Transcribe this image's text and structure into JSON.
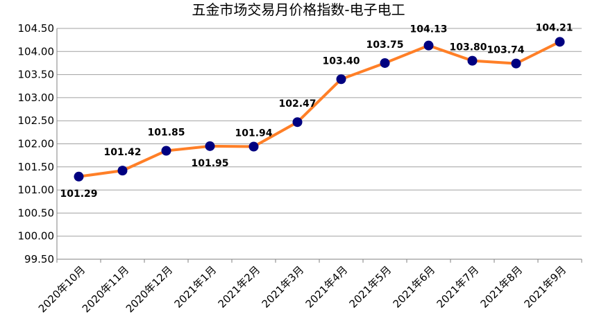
{
  "chart_data": {
    "type": "line",
    "title": "五金市场交易月价格指数-电子电工",
    "categories": [
      "2020年10月",
      "2020年11月",
      "2020年12月",
      "2021年1月",
      "2021年2月",
      "2021年3月",
      "2021年4月",
      "2021年5月",
      "2021年6月",
      "2021年7月",
      "2021年8月",
      "2021年9月"
    ],
    "values": [
      101.29,
      101.42,
      101.85,
      101.95,
      101.94,
      102.47,
      103.4,
      103.75,
      104.13,
      103.8,
      103.74,
      104.21
    ],
    "data_labels": [
      "101.29",
      "101.42",
      "101.85",
      "101.95",
      "101.94",
      "102.47",
      "103.40",
      "103.75",
      "104.13",
      "103.80",
      "103.74",
      "104.21"
    ],
    "ylim": [
      99.5,
      104.5
    ],
    "yticks": [
      "104.50",
      "104.00",
      "103.50",
      "103.00",
      "102.50",
      "102.00",
      "101.50",
      "101.00",
      "100.50",
      "100.00",
      "99.50"
    ],
    "xlabel": "",
    "ylabel": "",
    "grid": true,
    "legend": "none",
    "colors": {
      "line": "#FF7F27",
      "marker": "#000080",
      "grid": "#A0A0A0",
      "axis": "#808080"
    }
  }
}
